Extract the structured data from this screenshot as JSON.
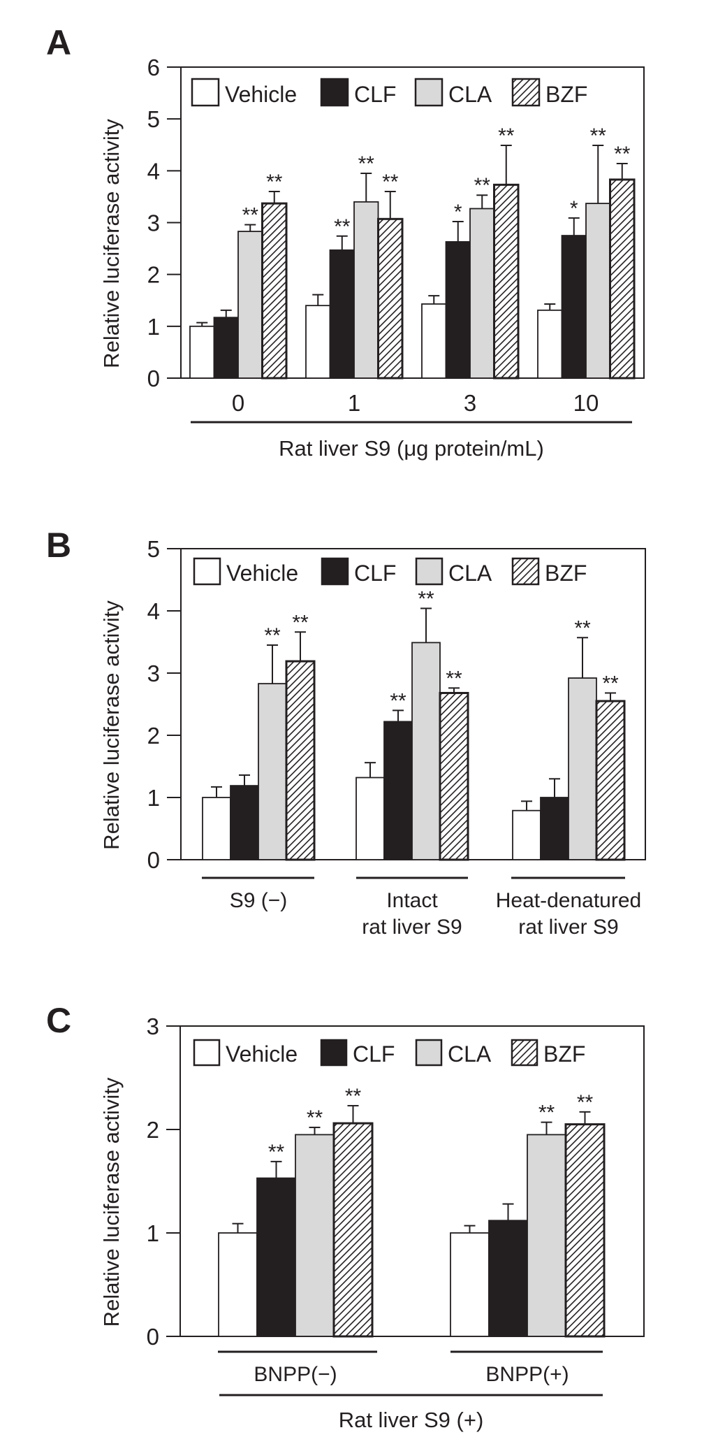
{
  "colors": {
    "ink": "#231f20",
    "vehicle_fill": "#ffffff",
    "clf_fill": "#231f20",
    "cla_fill": "#d9d9d9",
    "bzf_hatch_bg": "#ffffff",
    "bzf_hatch_line": "#231f20"
  },
  "legend": [
    {
      "key": "vehicle",
      "label": "Vehicle"
    },
    {
      "key": "clf",
      "label": "CLF"
    },
    {
      "key": "cla",
      "label": "CLA"
    },
    {
      "key": "bzf",
      "label": "BZF"
    }
  ],
  "chart_data": [
    {
      "panel": "A",
      "type": "bar",
      "ylabel": "Relative luciferase activity",
      "xlabel": "Rat liver S9 (μg protein/mL)",
      "ylim": [
        0,
        6
      ],
      "yticks": [
        "0",
        "1",
        "2",
        "3",
        "4",
        "5",
        "6"
      ],
      "categories": [
        "0",
        "1",
        "3",
        "10"
      ],
      "group_lines": [],
      "series": [
        {
          "name": "Vehicle",
          "values": [
            1.0,
            1.4,
            1.43,
            1.31
          ],
          "errors": [
            0.07,
            0.21,
            0.16,
            0.12
          ],
          "sig": [
            "",
            "",
            "",
            ""
          ]
        },
        {
          "name": "CLF",
          "values": [
            1.17,
            2.47,
            2.63,
            2.75
          ],
          "errors": [
            0.14,
            0.27,
            0.39,
            0.34
          ],
          "sig": [
            "",
            "**",
            "*",
            "*"
          ]
        },
        {
          "name": "CLA",
          "values": [
            2.83,
            3.4,
            3.27,
            3.37
          ],
          "errors": [
            0.13,
            0.55,
            0.26,
            1.12
          ],
          "sig": [
            "**",
            "**",
            "**",
            "**"
          ]
        },
        {
          "name": "BZF",
          "values": [
            3.37,
            3.07,
            3.73,
            3.83
          ],
          "errors": [
            0.23,
            0.53,
            0.76,
            0.31
          ],
          "sig": [
            "**",
            "**",
            "**",
            "**"
          ]
        }
      ]
    },
    {
      "panel": "B",
      "type": "bar",
      "ylabel": "Relative luciferase activity",
      "xlabel": "",
      "ylim": [
        0,
        5
      ],
      "yticks": [
        "0",
        "1",
        "2",
        "3",
        "4",
        "5"
      ],
      "categories": [
        [
          "S9 (−)"
        ],
        [
          "Intact",
          "rat liver S9"
        ],
        [
          "Heat-denatured",
          "rat liver S9"
        ]
      ],
      "series": [
        {
          "name": "Vehicle",
          "values": [
            1.0,
            1.32,
            0.79
          ],
          "errors": [
            0.17,
            0.24,
            0.15
          ],
          "sig": [
            "",
            "",
            ""
          ]
        },
        {
          "name": "CLF",
          "values": [
            1.19,
            2.22,
            1.0
          ],
          "errors": [
            0.17,
            0.18,
            0.3
          ],
          "sig": [
            "",
            "**",
            ""
          ]
        },
        {
          "name": "CLA",
          "values": [
            2.83,
            3.49,
            2.92
          ],
          "errors": [
            0.62,
            0.55,
            0.65
          ],
          "sig": [
            "**",
            "**",
            "**"
          ]
        },
        {
          "name": "BZF",
          "values": [
            3.19,
            2.68,
            2.55
          ],
          "errors": [
            0.47,
            0.08,
            0.13
          ],
          "sig": [
            "**",
            "**",
            "**"
          ]
        }
      ]
    },
    {
      "panel": "C",
      "type": "bar",
      "ylabel": "Relative luciferase activity",
      "xlabel": "Rat liver S9 (+)",
      "ylim": [
        0,
        3
      ],
      "yticks": [
        "0",
        "1",
        "2",
        "3"
      ],
      "categories": [
        [
          "BNPP(−)"
        ],
        [
          "BNPP(+)"
        ]
      ],
      "series": [
        {
          "name": "Vehicle",
          "values": [
            1.0,
            1.0
          ],
          "errors": [
            0.09,
            0.07
          ],
          "sig": [
            "",
            ""
          ]
        },
        {
          "name": "CLF",
          "values": [
            1.53,
            1.12
          ],
          "errors": [
            0.16,
            0.16
          ],
          "sig": [
            "**",
            ""
          ]
        },
        {
          "name": "CLA",
          "values": [
            1.95,
            1.95
          ],
          "errors": [
            0.07,
            0.12
          ],
          "sig": [
            "**",
            "**"
          ]
        },
        {
          "name": "BZF",
          "values": [
            2.06,
            2.05
          ],
          "errors": [
            0.17,
            0.12
          ],
          "sig": [
            "**",
            "**"
          ]
        }
      ]
    }
  ]
}
